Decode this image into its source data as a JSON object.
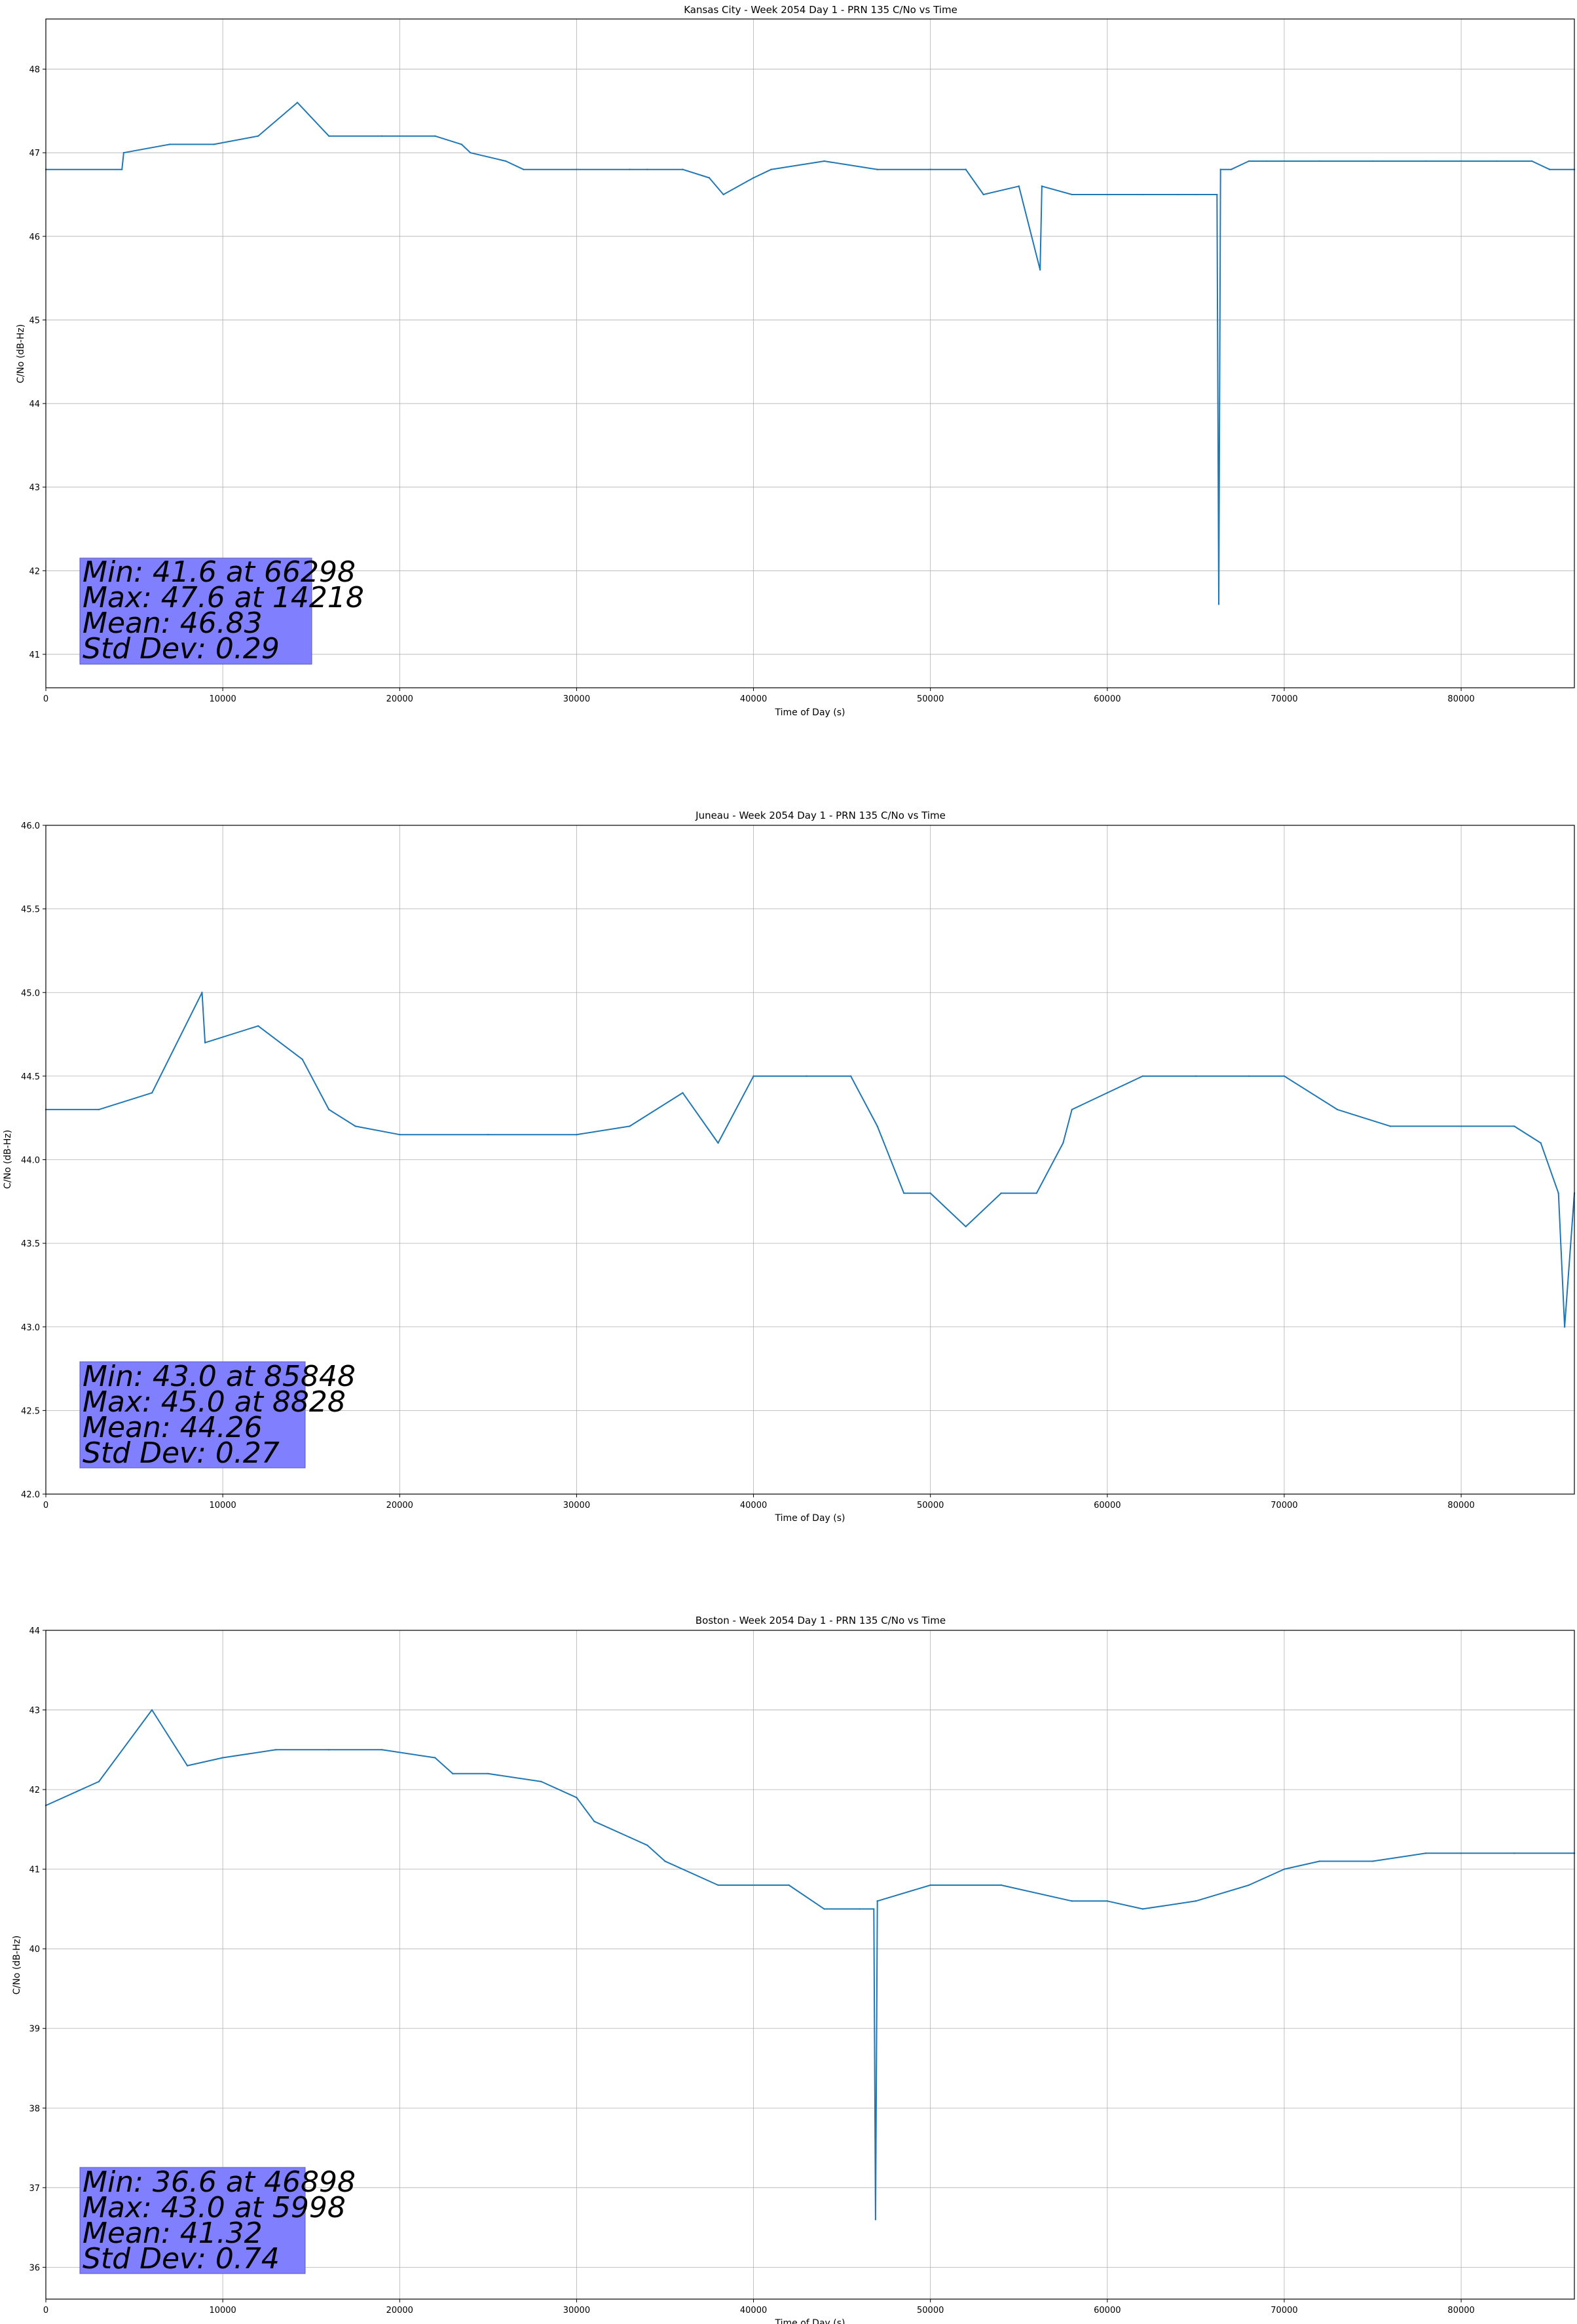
{
  "chart_data": [
    {
      "type": "line",
      "title": "Kansas City - Week 2054 Day 1 - PRN 135 C/No vs Time",
      "xlabel": "Time of Day (s)",
      "ylabel": "C/No (dB-Hz)",
      "xlim": [
        0,
        86400
      ],
      "ylim": [
        40.6,
        48.6
      ],
      "xticks": [
        0,
        10000,
        20000,
        30000,
        40000,
        50000,
        60000,
        70000,
        80000
      ],
      "yticks": [
        41,
        42,
        43,
        44,
        45,
        46,
        47,
        48
      ],
      "grid": true,
      "color": "#1f77b4",
      "series": [
        {
          "x": [
            0,
            4300,
            4400,
            7000,
            9500,
            12000,
            14218,
            16000,
            19000,
            22000,
            23500,
            24000,
            26000,
            27000,
            30000,
            33000,
            34000,
            36000,
            37500,
            38300,
            40000,
            41000,
            44000,
            47000,
            50000,
            52000,
            53000,
            55000,
            56200,
            56300,
            58000,
            60000,
            62000,
            64000,
            65000,
            66200,
            66298,
            66400,
            67000,
            68000,
            69000,
            70000,
            72000,
            75000,
            78000,
            80000,
            82000,
            84000,
            85000,
            86400
          ],
          "y": [
            46.8,
            46.8,
            47.0,
            47.1,
            47.1,
            47.2,
            47.6,
            47.2,
            47.2,
            47.2,
            47.1,
            47.0,
            46.9,
            46.8,
            46.8,
            46.8,
            46.8,
            46.8,
            46.7,
            46.5,
            46.7,
            46.8,
            46.9,
            46.8,
            46.8,
            46.8,
            46.5,
            46.6,
            45.6,
            46.6,
            46.5,
            46.5,
            46.5,
            46.5,
            46.5,
            46.5,
            41.6,
            46.8,
            46.8,
            46.9,
            46.9,
            46.9,
            46.9,
            46.9,
            46.9,
            46.9,
            46.9,
            46.9,
            46.8,
            46.8
          ]
        }
      ],
      "stats": {
        "line1": "Min: 41.6 at 66298",
        "line2": "Max: 47.6 at 14218",
        "line3": "Mean: 46.83",
        "line4": "Std Dev: 0.29"
      }
    },
    {
      "type": "line",
      "title": "Juneau - Week 2054 Day 1 - PRN 135 C/No vs Time",
      "xlabel": "Time of Day (s)",
      "ylabel": "C/No (dB-Hz)",
      "xlim": [
        0,
        86400
      ],
      "ylim": [
        42.0,
        46.0
      ],
      "xticks": [
        0,
        10000,
        20000,
        30000,
        40000,
        50000,
        60000,
        70000,
        80000
      ],
      "yticks": [
        42.0,
        42.5,
        43.0,
        43.5,
        44.0,
        44.5,
        45.0,
        45.5,
        46.0
      ],
      "grid": true,
      "color": "#1f77b4",
      "series": [
        {
          "x": [
            0,
            3000,
            6000,
            8828,
            9000,
            12000,
            14500,
            16000,
            17500,
            20000,
            25000,
            30000,
            33000,
            36000,
            38000,
            40000,
            43000,
            45500,
            47000,
            48500,
            50000,
            52000,
            54000,
            56000,
            57500,
            58000,
            60000,
            62000,
            65000,
            68000,
            70000,
            73000,
            76000,
            80000,
            83000,
            84500,
            85500,
            85848,
            86400
          ],
          "y": [
            44.3,
            44.3,
            44.4,
            45.0,
            44.7,
            44.8,
            44.6,
            44.3,
            44.2,
            44.15,
            44.15,
            44.15,
            44.2,
            44.4,
            44.1,
            44.5,
            44.5,
            44.5,
            44.2,
            43.8,
            43.8,
            43.6,
            43.8,
            43.8,
            44.1,
            44.3,
            44.4,
            44.5,
            44.5,
            44.5,
            44.5,
            44.3,
            44.2,
            44.2,
            44.2,
            44.1,
            43.8,
            43.0,
            43.8
          ]
        }
      ],
      "stats": {
        "line1": "Min: 43.0 at 85848",
        "line2": "Max: 45.0 at 8828",
        "line3": "Mean: 44.26",
        "line4": "Std Dev: 0.27"
      }
    },
    {
      "type": "line",
      "title": "Boston - Week 2054 Day 1 - PRN 135 C/No vs Time",
      "xlabel": "Time of Day (s)",
      "ylabel": "C/No (dB-Hz)",
      "xlim": [
        0,
        86400
      ],
      "ylim": [
        35.6,
        44.0
      ],
      "xticks": [
        0,
        10000,
        20000,
        30000,
        40000,
        50000,
        60000,
        70000,
        80000
      ],
      "yticks": [
        36,
        37,
        38,
        39,
        40,
        41,
        42,
        43,
        44
      ],
      "grid": true,
      "color": "#1f77b4",
      "series": [
        {
          "x": [
            0,
            3000,
            5998,
            8000,
            10000,
            13000,
            16000,
            19000,
            22000,
            23000,
            25000,
            28000,
            30000,
            31000,
            33000,
            34000,
            35000,
            38000,
            42000,
            44000,
            46000,
            46800,
            46898,
            47000,
            50000,
            54000,
            58000,
            60000,
            62000,
            65000,
            68000,
            70000,
            72000,
            75000,
            78000,
            80000,
            83000,
            86400
          ],
          "y": [
            41.8,
            42.1,
            43.0,
            42.3,
            42.4,
            42.5,
            42.5,
            42.5,
            42.4,
            42.2,
            42.2,
            42.1,
            41.9,
            41.6,
            41.4,
            41.3,
            41.1,
            40.8,
            40.8,
            40.5,
            40.5,
            40.5,
            36.6,
            40.6,
            40.8,
            40.8,
            40.6,
            40.6,
            40.5,
            40.6,
            40.8,
            41.0,
            41.1,
            41.1,
            41.2,
            41.2,
            41.2,
            41.2
          ]
        }
      ],
      "stats": {
        "line1": "Min: 36.6 at 46898",
        "line2": "Max: 43.0 at 5998",
        "line3": "Mean: 41.32",
        "line4": "Std Dev: 0.74"
      }
    }
  ]
}
